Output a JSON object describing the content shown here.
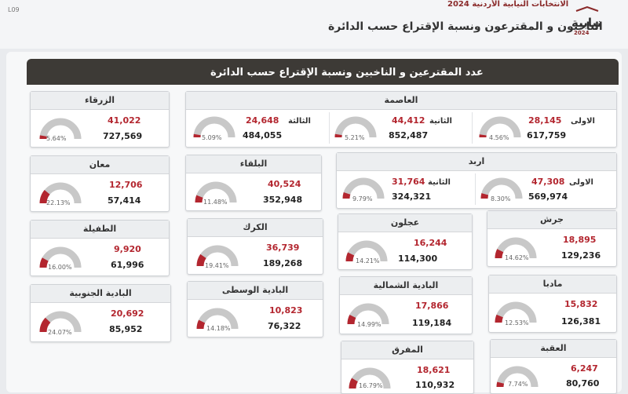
{
  "header": {
    "small_title": "الانتخابات النيابية الأردنية 2024",
    "title": "الناخبون و المقترعون ونسبة الإقتراع حسب الدائرة",
    "corner": "L09",
    "logo": "نيابية",
    "logo_year": "2024"
  },
  "banner": {
    "title": "عدد المقترعين و الناخبين ونسبة الإقتراع حسب الدائرة"
  },
  "colors": {
    "accent": "#b3262f",
    "gauge_track": "#c8c8c8",
    "banner_bg": "#3d3a36"
  },
  "cards": {
    "zarqa": {
      "name": "الزرقاء",
      "pct_value": 5.64,
      "pct": "5.64%",
      "voted": "41,022",
      "voters": "727,569"
    },
    "amman": {
      "name": "العاصمة",
      "subs": [
        {
          "label": "الاولى",
          "pct_value": 4.56,
          "pct": "4.56%",
          "voted": "28,145",
          "voters": "617,759"
        },
        {
          "label": "الثانية",
          "pct_value": 5.21,
          "pct": "5.21%",
          "voted": "44,412",
          "voters": "852,487"
        },
        {
          "label": "الثالثة",
          "pct_value": 5.09,
          "pct": "5.09%",
          "voted": "24,648",
          "voters": "484,055"
        }
      ]
    },
    "maan": {
      "name": "معان",
      "pct_value": 22.13,
      "pct": "22.13%",
      "voted": "12,706",
      "voters": "57,414"
    },
    "balqa": {
      "name": "البلقاء",
      "pct_value": 11.48,
      "pct": "11.48%",
      "voted": "40,524",
      "voters": "352,948"
    },
    "irbid": {
      "name": "اربد",
      "subs": [
        {
          "label": "الاولى",
          "pct_value": 8.3,
          "pct": "8.30%",
          "voted": "47,308",
          "voters": "569,974"
        },
        {
          "label": "الثانية",
          "pct_value": 9.79,
          "pct": "9.79%",
          "voted": "31,764",
          "voters": "324,321"
        }
      ]
    },
    "tafila": {
      "name": "الطفيلة",
      "pct_value": 16.0,
      "pct": "16.00%",
      "voted": "9,920",
      "voters": "61,996"
    },
    "karak": {
      "name": "الكرك",
      "pct_value": 19.41,
      "pct": "19.41%",
      "voted": "36,739",
      "voters": "189,268"
    },
    "ajloun": {
      "name": "عجلون",
      "pct_value": 14.21,
      "pct": "14.21%",
      "voted": "16,244",
      "voters": "114,300"
    },
    "jerash": {
      "name": "جرش",
      "pct_value": 14.62,
      "pct": "14.62%",
      "voted": "18,895",
      "voters": "129,236"
    },
    "south_badia": {
      "name": "البادية الجنوبية",
      "pct_value": 24.07,
      "pct": "24.07%",
      "voted": "20,692",
      "voters": "85,952"
    },
    "central_badia": {
      "name": "البادية الوسطى",
      "pct_value": 14.18,
      "pct": "14.18%",
      "voted": "10,823",
      "voters": "76,322"
    },
    "north_badia": {
      "name": "البادية الشمالية",
      "pct_value": 14.99,
      "pct": "14.99%",
      "voted": "17,866",
      "voters": "119,184"
    },
    "madaba": {
      "name": "مادبا",
      "pct_value": 12.53,
      "pct": "12.53%",
      "voted": "15,832",
      "voters": "126,381"
    },
    "mafraq": {
      "name": "المفرق",
      "pct_value": 16.79,
      "pct": "16.79%",
      "voted": "18,621",
      "voters": "110,932"
    },
    "aqaba": {
      "name": "العقبة",
      "pct_value": 7.74,
      "pct": "7.74%",
      "voted": "6,247",
      "voters": "80,760"
    }
  }
}
